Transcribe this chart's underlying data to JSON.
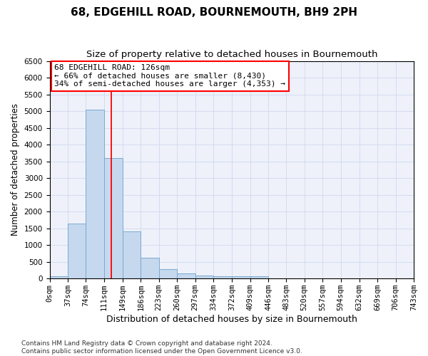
{
  "title": "68, EDGEHILL ROAD, BOURNEMOUTH, BH9 2PH",
  "subtitle": "Size of property relative to detached houses in Bournemouth",
  "xlabel": "Distribution of detached houses by size in Bournemouth",
  "ylabel": "Number of detached properties",
  "footer_line1": "Contains HM Land Registry data © Crown copyright and database right 2024.",
  "footer_line2": "Contains public sector information licensed under the Open Government Licence v3.0.",
  "bin_edges": [
    0,
    37,
    74,
    111,
    149,
    186,
    223,
    260,
    297,
    334,
    372,
    409,
    446,
    483,
    520,
    557,
    594,
    632,
    669,
    706,
    743
  ],
  "bar_heights": [
    75,
    1650,
    5050,
    3600,
    1400,
    625,
    290,
    145,
    100,
    75,
    65,
    75,
    0,
    0,
    0,
    0,
    0,
    0,
    0,
    0
  ],
  "bar_color": "#c5d8ee",
  "bar_edge_color": "#7aaad0",
  "grid_color": "#d0d8ee",
  "vline_x": 126,
  "vline_color": "red",
  "annotation_line1": "68 EDGEHILL ROAD: 126sqm",
  "annotation_line2": "← 66% of detached houses are smaller (8,430)",
  "annotation_line3": "34% of semi-detached houses are larger (4,353) →",
  "annotation_box_color": "white",
  "annotation_box_edge_color": "red",
  "ylim": [
    0,
    6500
  ],
  "yticks": [
    0,
    500,
    1000,
    1500,
    2000,
    2500,
    3000,
    3500,
    4000,
    4500,
    5000,
    5500,
    6000,
    6500
  ],
  "title_fontsize": 11,
  "subtitle_fontsize": 9.5,
  "xlabel_fontsize": 9,
  "ylabel_fontsize": 8.5,
  "tick_fontsize": 7.5,
  "annotation_fontsize": 8,
  "footer_fontsize": 6.5,
  "background_color": "#eef1fa"
}
